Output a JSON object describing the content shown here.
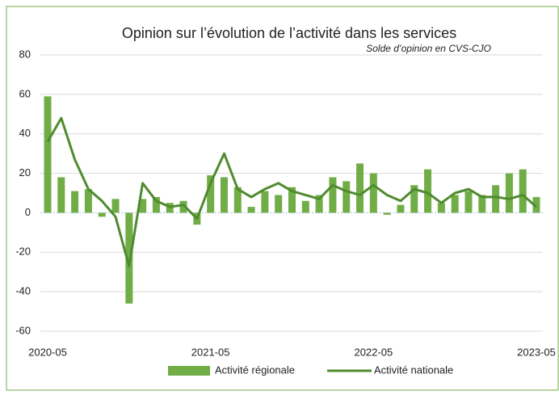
{
  "chart_data": {
    "type": "bar_line",
    "title": "Opinion sur l’évolution de l’activité dans les services",
    "subtitle": "Solde d’opinion en CVS-CJO",
    "categories": [
      "2020-05",
      null,
      null,
      null,
      null,
      null,
      null,
      null,
      null,
      null,
      null,
      null,
      "2021-05",
      null,
      null,
      null,
      null,
      null,
      null,
      null,
      null,
      null,
      null,
      null,
      "2022-05",
      null,
      null,
      null,
      null,
      null,
      null,
      null,
      null,
      null,
      null,
      null,
      "2023-05"
    ],
    "series": [
      {
        "name": "Activité régionale",
        "kind": "bar",
        "color": "#70ad47",
        "values": [
          59,
          18,
          11,
          12,
          -2,
          7,
          -46,
          7,
          8,
          5,
          6,
          -6,
          19,
          18,
          13,
          3,
          11,
          9,
          13,
          6,
          9,
          18,
          16,
          25,
          20,
          -1,
          4,
          14,
          22,
          5,
          9,
          11,
          9,
          14,
          20,
          22,
          8
        ]
      },
      {
        "name": "Activité nationale",
        "kind": "line",
        "color": "#4f8b2f",
        "values": [
          36,
          48,
          27,
          12,
          6,
          -2,
          -27,
          15,
          6,
          3,
          4,
          -3,
          15,
          30,
          12,
          8,
          12,
          15,
          11,
          9,
          7,
          14,
          11,
          9,
          14,
          9,
          6,
          12,
          10,
          5,
          10,
          12,
          8,
          8,
          7,
          9,
          3
        ]
      }
    ],
    "ylim": [
      -60,
      80
    ],
    "yticks": [
      -60,
      -40,
      -20,
      0,
      20,
      40,
      60,
      80
    ],
    "grid": true,
    "legend": "bottom"
  }
}
